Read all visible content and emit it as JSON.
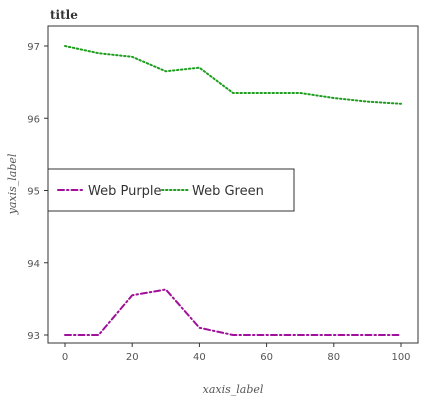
{
  "chart_data": {
    "type": "line",
    "title": "title",
    "xlabel": "xaxis_label",
    "ylabel": "yaxis_label",
    "xlim": [
      0,
      100
    ],
    "ylim": [
      93,
      97
    ],
    "xticks": [
      "0",
      "20",
      "40",
      "60",
      "80",
      "100"
    ],
    "yticks": [
      "93",
      "94",
      "95",
      "96",
      "97"
    ],
    "grid": false,
    "legend_placement": "center-left",
    "series": [
      {
        "name": "Web Purple",
        "color": "#a0109a",
        "dash": "dash-dot",
        "x": [
          0,
          10,
          20,
          30,
          40,
          50,
          60,
          70,
          80,
          90,
          100
        ],
        "y": [
          93.0,
          93.0,
          93.55,
          93.63,
          93.1,
          93.0,
          93.0,
          93.0,
          93.0,
          93.0,
          93.0
        ]
      },
      {
        "name": "Web Green",
        "color": "#1e9e1e",
        "dash": "dotted",
        "x": [
          0,
          10,
          20,
          30,
          40,
          50,
          60,
          70,
          80,
          90,
          100
        ],
        "y": [
          97.0,
          96.9,
          96.85,
          96.65,
          96.7,
          96.35,
          96.35,
          96.35,
          96.28,
          96.23,
          96.2
        ]
      }
    ]
  }
}
